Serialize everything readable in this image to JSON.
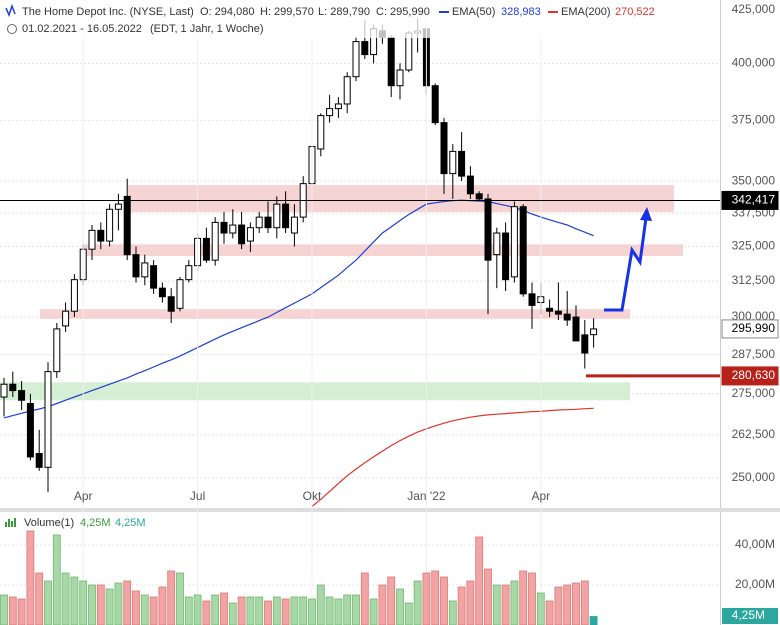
{
  "chart_data": [
    {
      "type": "candlestick",
      "title": "The Home Depot Inc. (NYSE, Last)",
      "header": [
        "O: 294,080",
        "H: 299,570",
        "L: 289,790",
        "C: 295,990"
      ],
      "subtitle": "01.02.2021 - 16.05.2022",
      "note": "(EDT, 1 Jahr, 1 Woche)",
      "categories": [
        null,
        null,
        null,
        null,
        null,
        null,
        null,
        null,
        null,
        "Apr",
        null,
        null,
        null,
        null,
        null,
        null,
        null,
        null,
        null,
        null,
        null,
        null,
        "Jul",
        null,
        null,
        null,
        null,
        null,
        null,
        null,
        null,
        null,
        null,
        null,
        null,
        "Okt",
        null,
        null,
        null,
        null,
        null,
        null,
        null,
        null,
        null,
        null,
        null,
        null,
        "Jan '22",
        null,
        null,
        null,
        null,
        null,
        null,
        null,
        null,
        null,
        null,
        null,
        null,
        "Apr",
        null,
        null,
        null,
        null,
        null,
        null
      ],
      "open": [
        274,
        278,
        276,
        272,
        257,
        253,
        282,
        297,
        302,
        313,
        324,
        331,
        327,
        339,
        344,
        322,
        314,
        318,
        310,
        307,
        303,
        313,
        318,
        328,
        320,
        334,
        330,
        333,
        327,
        332,
        336,
        332,
        341,
        330,
        336,
        349,
        363,
        377,
        380,
        382,
        394,
        410,
        404,
        415,
        412,
        390,
        397,
        414,
        416,
        390,
        374,
        353,
        362,
        352,
        345,
        343,
        322,
        330,
        314,
        340,
        308,
        305,
        303,
        302,
        301,
        300,
        294,
        294.08
      ],
      "high": [
        280,
        282,
        279,
        275,
        264,
        285,
        298,
        305,
        315,
        326,
        333,
        334,
        341,
        345,
        351,
        325,
        322,
        320,
        312,
        310,
        314,
        320,
        330,
        332,
        336,
        338,
        339,
        338,
        334,
        338,
        342,
        344,
        346,
        341,
        352,
        365,
        378,
        386,
        385,
        396,
        412,
        420,
        418,
        418,
        413,
        400,
        415,
        421,
        418,
        391,
        376,
        365,
        370,
        356,
        346,
        345,
        332,
        334,
        342,
        341,
        312,
        312,
        306,
        312,
        309,
        304,
        299,
        299.57
      ],
      "low": [
        268,
        274,
        270,
        255,
        252,
        246,
        280,
        295,
        300,
        311,
        320,
        324,
        325,
        331,
        320,
        312,
        311,
        308,
        305,
        298,
        302,
        312,
        316,
        319,
        318,
        326,
        328,
        324,
        323,
        330,
        330,
        328,
        330,
        325,
        334,
        347,
        360,
        374,
        376,
        378,
        392,
        402,
        400,
        409,
        385,
        384,
        396,
        405,
        386,
        373,
        345,
        343,
        350,
        343,
        342,
        301,
        310,
        309,
        312,
        307,
        296,
        301,
        300,
        299,
        297,
        292,
        283,
        289.79
      ],
      "close": [
        278,
        276,
        273,
        256,
        253,
        282,
        296,
        302,
        313,
        324,
        331,
        327,
        339,
        341,
        322,
        314,
        319,
        310,
        307,
        302,
        313,
        318,
        328,
        320,
        334,
        330,
        333,
        326,
        332,
        336,
        332,
        341,
        332,
        336,
        349,
        364,
        377,
        380,
        382,
        394,
        410,
        404,
        416,
        412,
        390,
        397,
        414,
        415,
        390,
        374,
        353,
        362,
        352,
        345,
        343,
        320,
        330,
        313,
        340,
        308,
        304,
        307,
        302,
        301,
        299,
        292,
        288,
        295.99
      ],
      "up_color": "#ffffff",
      "down_color": "#000000",
      "series": [
        {
          "name": "EMA(50)",
          "color": "#1f3fd6",
          "value_label": "328,983",
          "values": [
            267.6,
            268.3,
            269,
            269.7,
            270.3,
            271,
            272,
            273,
            274,
            275,
            276,
            277,
            278,
            279,
            280,
            281.2,
            282.3,
            283.5,
            284.7,
            285.8,
            287,
            288.4,
            289.8,
            291.2,
            292.6,
            294,
            295.2,
            296.4,
            297.6,
            298.8,
            300,
            301.6,
            303.2,
            304.8,
            306.4,
            308,
            310.2,
            312.4,
            314.6,
            317.3,
            320,
            323.3,
            326.7,
            330,
            332.3,
            334.7,
            337,
            339,
            341,
            341.5,
            342,
            342.3,
            342.5,
            342.3,
            342.2,
            342,
            341.2,
            340.5,
            339.7,
            338.5,
            337.2,
            336,
            335,
            334,
            333,
            331.6,
            330.3,
            328.983
          ]
        },
        {
          "name": "EMA(200)",
          "color": "#e0352b",
          "value_label": "270,522",
          "values": [
            null,
            null,
            null,
            null,
            null,
            null,
            null,
            null,
            null,
            null,
            null,
            null,
            null,
            null,
            null,
            null,
            null,
            null,
            null,
            null,
            null,
            null,
            null,
            null,
            null,
            null,
            null,
            null,
            null,
            null,
            null,
            null,
            null,
            null,
            null,
            242,
            244,
            246.2,
            248.4,
            250.6,
            252.5,
            254.3,
            256,
            257.7,
            259.3,
            260.8,
            262.1,
            263.3,
            264.3,
            265.2,
            266,
            266.7,
            267.3,
            267.8,
            268.2,
            268.5,
            268.7,
            268.9,
            269.1,
            269.3,
            269.5,
            269.6,
            269.8,
            270,
            270.1,
            270.2,
            270.4,
            270.522
          ]
        }
      ],
      "ylim": [
        241.6,
        429.8
      ],
      "log": true,
      "grid": true,
      "yticks": [
        {
          "value": 250,
          "label": "250,000"
        },
        {
          "value": 262.5,
          "label": "262,500"
        },
        {
          "value": 275,
          "label": "275,000"
        },
        {
          "value": 287.5,
          "label": "287,500"
        },
        {
          "value": 300,
          "label": "300,000"
        },
        {
          "value": 312.5,
          "label": "312,500"
        },
        {
          "value": 325,
          "label": "325,000"
        },
        {
          "value": 337.5,
          "label": "337,500"
        },
        {
          "value": 350,
          "label": "350,000"
        },
        {
          "value": 375,
          "label": "375,000"
        },
        {
          "value": 400,
          "label": "400,000"
        },
        {
          "value": 425,
          "label": "425,000"
        }
      ],
      "zones": [
        {
          "range": [
            337.9,
            348.4
          ],
          "color": "#f4cccc"
        },
        {
          "range": [
            321.5,
            325.8
          ],
          "color": "#f4cccc"
        },
        {
          "range": [
            299.4,
            302.7
          ],
          "color": "#f4cccc"
        },
        {
          "range": [
            273.0,
            278.6
          ],
          "color": "#cdeccd"
        }
      ],
      "levels": [
        {
          "value": 342.417,
          "label": "342,417",
          "color": "#000000"
        },
        {
          "value": 295.99,
          "label": "295,990",
          "color": "#ffffff"
        },
        {
          "value": 280.63,
          "label": "280,630",
          "color": "#b8201a"
        }
      ]
    },
    {
      "type": "bar",
      "title": "Volume(1)",
      "header": [
        "4,25M",
        "4,25M"
      ],
      "values": [
        15,
        14,
        13,
        47,
        26,
        22,
        45,
        26,
        24,
        22,
        20,
        20,
        18,
        21,
        22,
        17,
        15,
        14,
        19,
        27,
        26,
        14,
        15,
        12,
        15,
        16,
        11,
        14,
        14,
        14,
        12,
        14,
        13,
        14,
        14,
        13,
        20,
        14,
        13,
        15,
        15,
        26,
        13,
        20,
        24,
        18,
        11,
        22,
        26,
        27,
        24,
        12,
        19,
        22,
        44,
        28,
        20,
        20,
        22,
        27,
        26,
        16,
        12,
        19,
        20,
        21,
        22,
        4.25
      ],
      "value_labels": [
        null,
        null,
        null,
        null,
        null,
        null,
        null,
        null,
        null,
        null,
        null,
        null,
        null,
        null,
        null,
        null,
        null,
        null,
        null,
        null,
        null,
        null,
        null,
        null,
        null,
        null,
        null,
        null,
        null,
        null,
        null,
        null,
        null,
        null,
        null,
        null,
        null,
        null,
        null,
        null,
        null,
        null,
        null,
        null,
        null,
        null,
        null,
        null,
        null,
        null,
        null,
        null,
        null,
        null,
        null,
        null,
        null,
        null,
        null,
        null,
        null,
        null,
        null,
        null,
        null,
        null,
        null,
        "4,25M"
      ],
      "up_color": "#a8d8a8",
      "down_color": "#f2a3a3",
      "last_color": "#2ba7a0",
      "ylim": [
        0,
        56
      ],
      "yticks": [
        {
          "value": 20,
          "label": "20,00M"
        },
        {
          "value": 40,
          "label": "40,00M"
        }
      ]
    }
  ]
}
